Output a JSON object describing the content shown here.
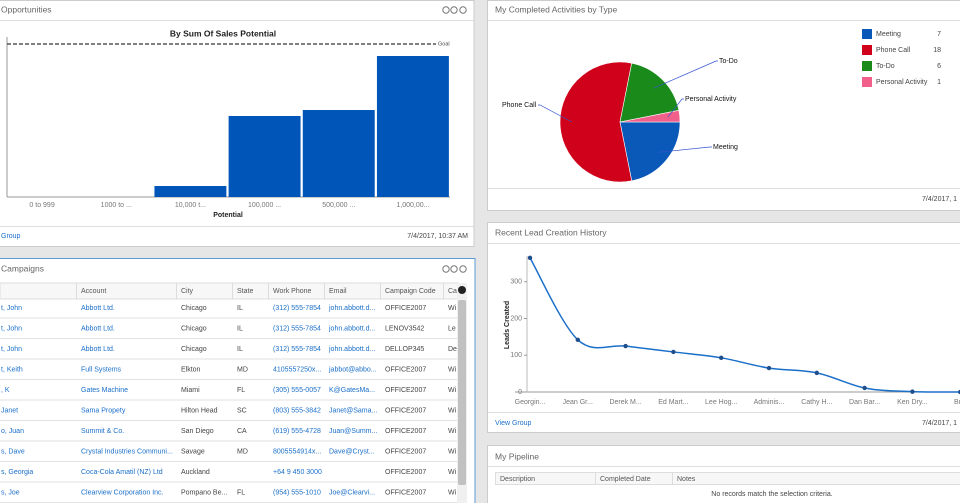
{
  "panels": {
    "opportunities": {
      "title": "Opportunities",
      "footer_link": "Group",
      "timestamp": "7/4/2017, 10:37 AM"
    },
    "activities": {
      "title": "My Completed Activities by Type",
      "timestamp": "7/4/2017, 1"
    },
    "campaigns": {
      "title": "Campaigns"
    },
    "leads": {
      "title": "Recent Lead Creation History",
      "footer_link": "View Group",
      "timestamp": "7/4/2017, 1"
    },
    "pipeline": {
      "title": "My Pipeline"
    }
  },
  "chart_data": [
    {
      "type": "bar",
      "title": "By Sum Of Sales Potential",
      "x_label": "Potential",
      "categories": [
        "0 to 999",
        "1000 to ...",
        "10,000 t...",
        "100,000 ...",
        "500,000 ...",
        "1,000,00..."
      ],
      "values": [
        0,
        0,
        11,
        81,
        87,
        141
      ],
      "color": "#0055b8",
      "ylim": [
        0,
        160
      ],
      "goal": 153,
      "goal_label": "Goal"
    },
    {
      "type": "pie",
      "categories": [
        "Meeting",
        "Phone Call",
        "To-Do",
        "Personal Activity"
      ],
      "values": [
        7,
        18,
        6,
        1
      ],
      "colors": [
        "#0a58b8",
        "#d0021b",
        "#1a8a1a",
        "#f0608a"
      ]
    },
    {
      "type": "line",
      "y_label": "Leads Created",
      "categories": [
        "Georgin...",
        "Jean Gr...",
        "Derek M...",
        "Ed Mart...",
        "Lee Hog...",
        "Adminis...",
        "Cathy H...",
        "Dan Bar...",
        "Ken Dry...",
        "Br..."
      ],
      "values": [
        365,
        142,
        125,
        109,
        93,
        65,
        52,
        11,
        1,
        0
      ],
      "color": "#1a6fc9",
      "ylim": [
        0,
        370
      ],
      "yticks": [
        0,
        100,
        200,
        300
      ]
    }
  ],
  "campaigns": {
    "columns": [
      null,
      "Account",
      "City",
      "State",
      "Work Phone",
      "Email",
      "Campaign Code",
      "Ca"
    ],
    "rows": [
      [
        "t, John",
        "Abbott Ltd.",
        "Chicago",
        "IL",
        "(312) 555-7854",
        "john.abbott.d...",
        "OFFICE2007",
        "Wi"
      ],
      [
        "t, John",
        "Abbott Ltd.",
        "Chicago",
        "IL",
        "(312) 555-7854",
        "john.abbott.d...",
        "LENOV3542",
        "Le"
      ],
      [
        "t, John",
        "Abbott Ltd.",
        "Chicago",
        "IL",
        "(312) 555-7854",
        "john.abbott.d...",
        "DELLOP345",
        "De"
      ],
      [
        "t, Keith",
        "Full Systems",
        "Elkton",
        "MD",
        "4105557250x...",
        "jabbot@abbo...",
        "OFFICE2007",
        "Wi"
      ],
      [
        ", K",
        "Gates Machine",
        "Miami",
        "FL",
        "(305) 555-0057",
        "K@GatesMa...",
        "OFFICE2007",
        "Wi"
      ],
      [
        "Janet",
        "Sama Propety",
        "Hilton Head",
        "SC",
        "(803) 555-3842",
        "Janet@Sama...",
        "OFFICE2007",
        "Wi"
      ],
      [
        "o, Juan",
        "Summit & Co.",
        "San Diego",
        "CA",
        "(619) 555-4728",
        "Juan@Summ...",
        "OFFICE2007",
        "Wi"
      ],
      [
        "s, Dave",
        "Crystal Industries Communi...",
        "Savage",
        "MD",
        "8005554914x...",
        "Dave@Cryst...",
        "OFFICE2007",
        "Wi"
      ],
      [
        "s, Georgia",
        "Coca-Cola Amatil (NZ) Ltd",
        "Auckland",
        null,
        "+64 9 450 3000",
        null,
        "OFFICE2007",
        "Wi"
      ],
      [
        "s, Joe",
        "Clearview Corporation Inc.",
        "Pompano Be...",
        "FL",
        "(954) 555-1010",
        "Joe@Clearvi...",
        "OFFICE2007",
        "Wi"
      ]
    ]
  },
  "pipeline": {
    "columns": [
      "Description",
      "Completed Date",
      "Notes"
    ],
    "empty_message": "No records match the selection criteria."
  }
}
